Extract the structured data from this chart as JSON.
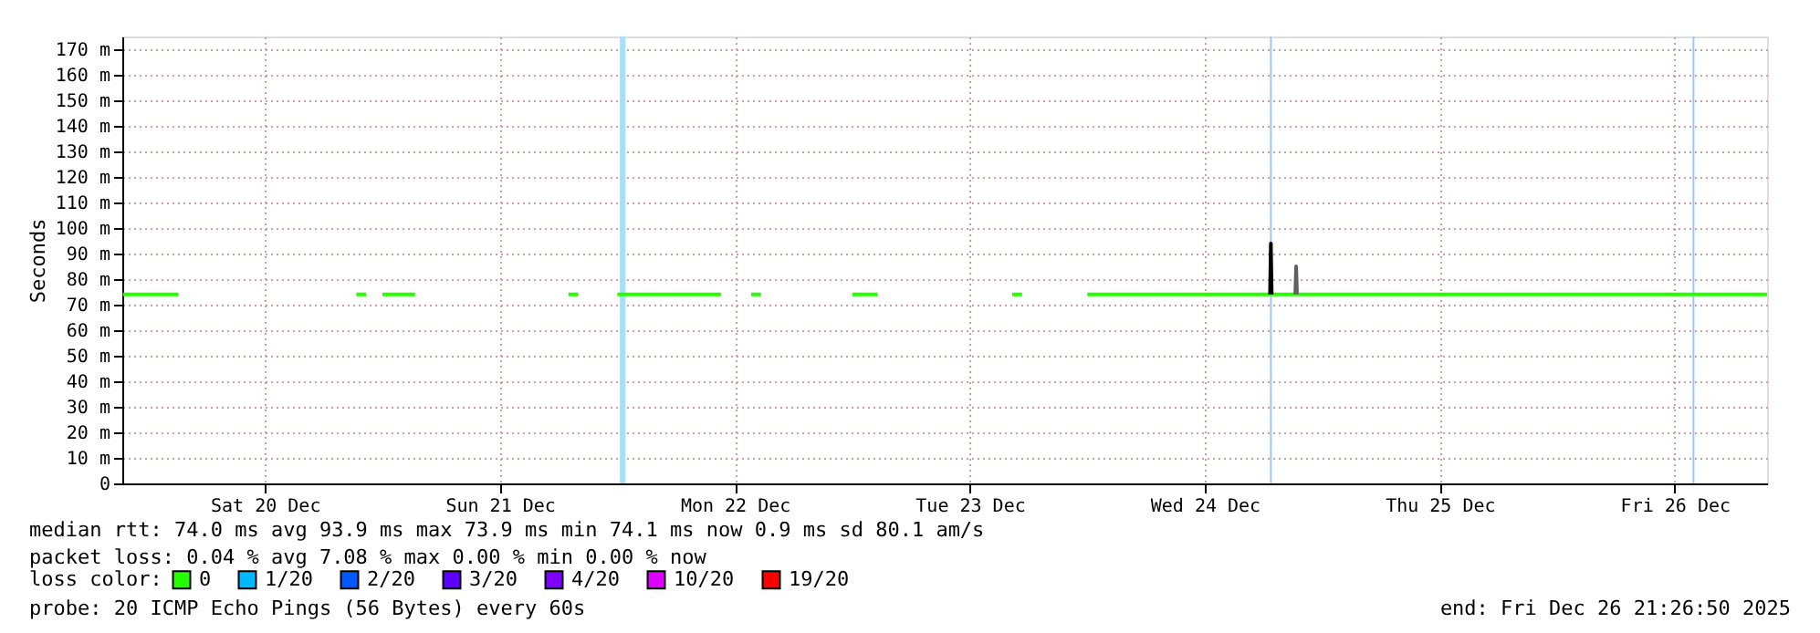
{
  "chart_data": {
    "type": "line",
    "ylabel": "Seconds",
    "xlim": [
      "2025-12-19T21:26",
      "2025-12-26T21:26"
    ],
    "xticks": [
      {
        "value": "2025-12-20T12:00",
        "label": "Sat 20 Dec"
      },
      {
        "value": "2025-12-21T12:00",
        "label": "Sun 21 Dec"
      },
      {
        "value": "2025-12-22T12:00",
        "label": "Mon 22 Dec"
      },
      {
        "value": "2025-12-23T12:00",
        "label": "Tue 23 Dec"
      },
      {
        "value": "2025-12-24T12:00",
        "label": "Wed 24 Dec"
      },
      {
        "value": "2025-12-25T12:00",
        "label": "Thu 25 Dec"
      },
      {
        "value": "2025-12-26T12:00",
        "label": "Fri 26 Dec"
      }
    ],
    "ylim": [
      0,
      175
    ],
    "yticks": [
      0,
      {
        "value": 10,
        "label": "10 m"
      },
      {
        "value": 20,
        "label": "20 m"
      },
      {
        "value": 30,
        "label": "30 m"
      },
      {
        "value": 40,
        "label": "40 m"
      },
      {
        "value": 50,
        "label": "50 m"
      },
      {
        "value": 60,
        "label": "60 m"
      },
      {
        "value": 70,
        "label": "70 m"
      },
      {
        "value": 80,
        "label": "80 m"
      },
      {
        "value": 90,
        "label": "90 m"
      },
      {
        "value": 100,
        "label": "100 m"
      },
      {
        "value": 110,
        "label": "110 m"
      },
      {
        "value": 120,
        "label": "120 m"
      },
      {
        "value": 130,
        "label": "130 m"
      },
      {
        "value": 140,
        "label": "140 m"
      },
      {
        "value": 150,
        "label": "150 m"
      },
      {
        "value": 160,
        "label": "160 m"
      },
      {
        "value": 170,
        "label": "170 m"
      }
    ],
    "grid": true,
    "legend": "bottom left",
    "legend_title": "loss color:",
    "series": [
      {
        "name": "0",
        "color": "#26ff00",
        "x": [
          "2025-12-19T21:30",
          "2025-12-20T03:10",
          "2025-12-20T12:00",
          "2025-12-20T21:20",
          "2025-12-20T22:20",
          "2025-12-20T23:00",
          "2025-12-21T00:00",
          "2025-12-21T03:20",
          "2025-12-21T12:00",
          "2025-12-21T19:00",
          "2025-12-21T20:00",
          "2025-12-21T21:00",
          "2025-12-22T00:00",
          "2025-12-22T10:35",
          "2025-12-22T12:00",
          "2025-12-22T13:40",
          "2025-12-22T14:40",
          "2025-12-22T20:00",
          "2025-12-23T00:00",
          "2025-12-23T02:35",
          "2025-12-23T10:00",
          "2025-12-23T16:20",
          "2025-12-23T17:20",
          "2025-12-23T20:00",
          "2025-12-24T00:00",
          "2025-12-25T00:00",
          "2025-12-26T00:00",
          "2025-12-26T21:26"
        ],
        "values": [
          74,
          74,
          null,
          74,
          74,
          null,
          74,
          74,
          null,
          74,
          74,
          null,
          74,
          74,
          null,
          74,
          74,
          null,
          74,
          74,
          null,
          74,
          74,
          null,
          74,
          74,
          74,
          74
        ]
      },
      {
        "name": "1/20",
        "color": "#00b8ff"
      },
      {
        "name": "2/20",
        "color": "#0059ff"
      },
      {
        "name": "3/20",
        "color": "#5e00ff"
      },
      {
        "name": "4/20",
        "color": "#7e00ff"
      },
      {
        "name": "10/20",
        "color": "#dd00ff"
      },
      {
        "name": "19/20",
        "color": "#ff0000"
      },
      {
        "color": "#000000",
        "x": [
          "2025-12-24T18:40",
          "2025-12-24T18:45",
          "2025-12-24T18:50"
        ],
        "values": [
          74,
          93.9,
          74
        ]
      },
      {
        "color": "#606060",
        "x": [
          "2025-12-24T21:15",
          "2025-12-24T21:20",
          "2025-12-24T21:25"
        ],
        "values": [
          74,
          85,
          74
        ]
      }
    ],
    "bands": [
      {
        "axis": "x",
        "from": "2025-12-22T00:15",
        "to": "2025-12-22T00:50",
        "color": "#a6e1fa"
      }
    ],
    "ref_lines": [
      {
        "axis": "x",
        "value": "2025-12-24T18:45",
        "color": "#9fc4ff"
      },
      {
        "axis": "x",
        "value": "2025-12-26T13:55",
        "color": "#9fc4ff"
      }
    ],
    "annotations": [
      "median rtt:  74.0 ms avg  93.9 ms max  73.9 ms min  74.1 ms now  0.9 ms sd  80.1   am/s",
      "packet loss: 0.04 % avg  7.08 % max  0.00 % min  0.00 % now",
      "probe:       20 ICMP Echo Pings (56 Bytes) every 60s",
      "end: Fri Dec 26 21:26:50 2025"
    ]
  }
}
